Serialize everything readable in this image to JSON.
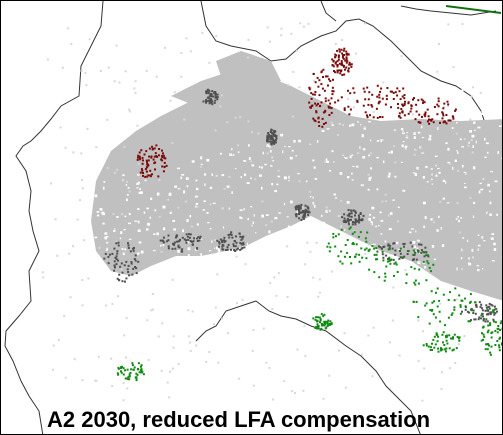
{
  "caption": "A2 2030, reduced LFA compensation",
  "colors": {
    "background": "#ffffff",
    "frame": "#000000",
    "borders": "#333333",
    "agriculture_land": "#c0c0c0",
    "white_speckle": "#ffffff",
    "abandonment_dark_grey": "#505050",
    "abandonment_dark_red": "#7b0a0a",
    "gain_green": "#118a11"
  },
  "legend_categories": [
    "agriculture_land",
    "abandonment_dark_grey",
    "abandonment_dark_red",
    "gain_green"
  ]
}
